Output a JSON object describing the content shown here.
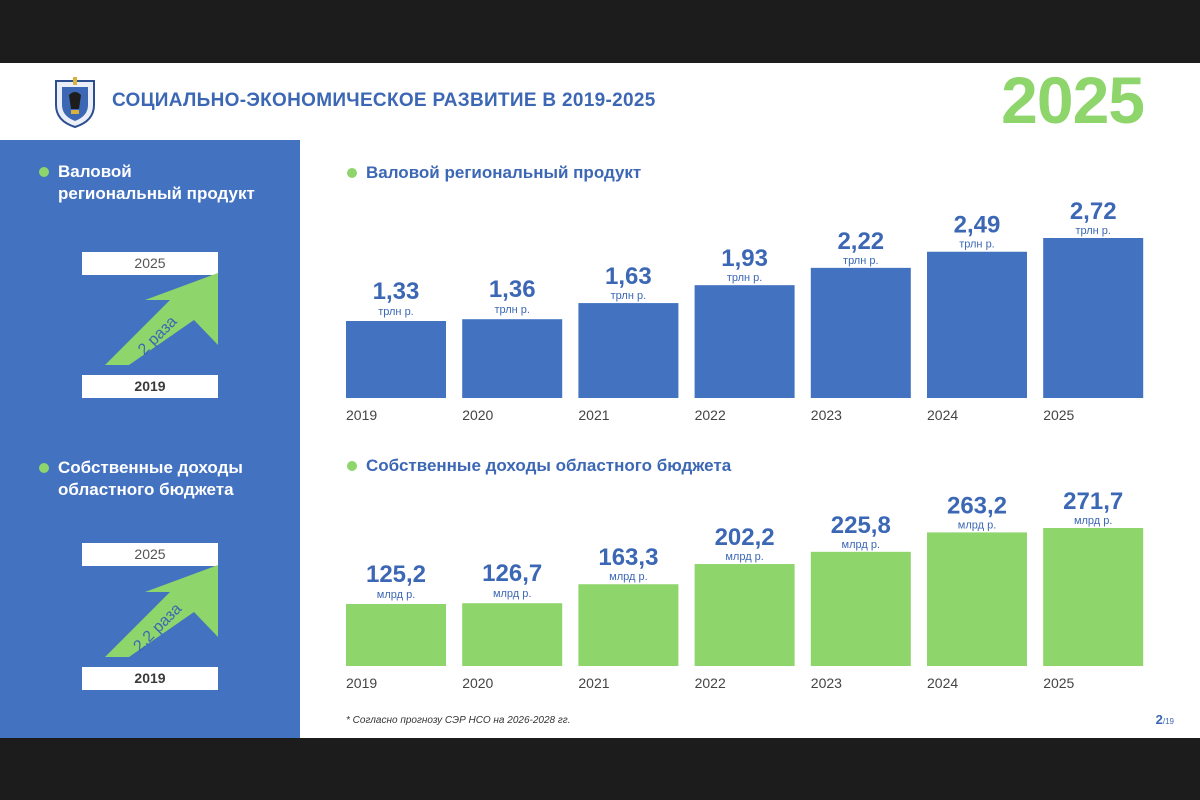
{
  "header": {
    "title": "СОЦИАЛЬНО-ЭКОНОМИЧЕСКОЕ РАЗВИТИЕ В 2019-2025",
    "big_year": "2025",
    "emblem_icon": "coat-of-arms-icon"
  },
  "sidebar": {
    "block1": {
      "heading": "Валовой региональный продукт",
      "top_year": "2025",
      "bottom_year": "2019",
      "growth": "2 раза"
    },
    "block2": {
      "heading": "Собственные доходы областного бюджета",
      "top_year": "2025",
      "bottom_year": "2019",
      "growth": "2,2 раза"
    }
  },
  "colors": {
    "blue": "#4372c1",
    "green": "#8ed56b",
    "title_blue": "#3c67b5"
  },
  "chart_data": [
    {
      "type": "bar",
      "title": "Валовой региональный продукт",
      "categories": [
        "2019",
        "2020",
        "2021",
        "2022",
        "2023",
        "2024",
        "2025"
      ],
      "values": [
        1.33,
        1.36,
        1.63,
        1.93,
        2.22,
        2.49,
        2.72
      ],
      "value_labels": [
        "1,33",
        "1,36",
        "1,63",
        "1,93",
        "2,22",
        "2,49",
        "2,72"
      ],
      "unit": "трлн р.",
      "color": "#4372c1"
    },
    {
      "type": "bar",
      "title": "Собственные доходы областного бюджета",
      "categories": [
        "2019",
        "2020",
        "2021",
        "2022",
        "2023",
        "2024",
        "2025"
      ],
      "values": [
        125.2,
        126.7,
        163.3,
        202.2,
        225.8,
        263.2,
        271.7
      ],
      "value_labels": [
        "125,2",
        "126,7",
        "163,3",
        "202,2",
        "225,8",
        "263,2",
        "271,7"
      ],
      "unit": "млрд р.",
      "color": "#8ed56b"
    }
  ],
  "footnote": "* Согласно прогнозу СЭР НСО на 2026-2028 гг.",
  "page": {
    "current": "2",
    "total": "/19"
  }
}
